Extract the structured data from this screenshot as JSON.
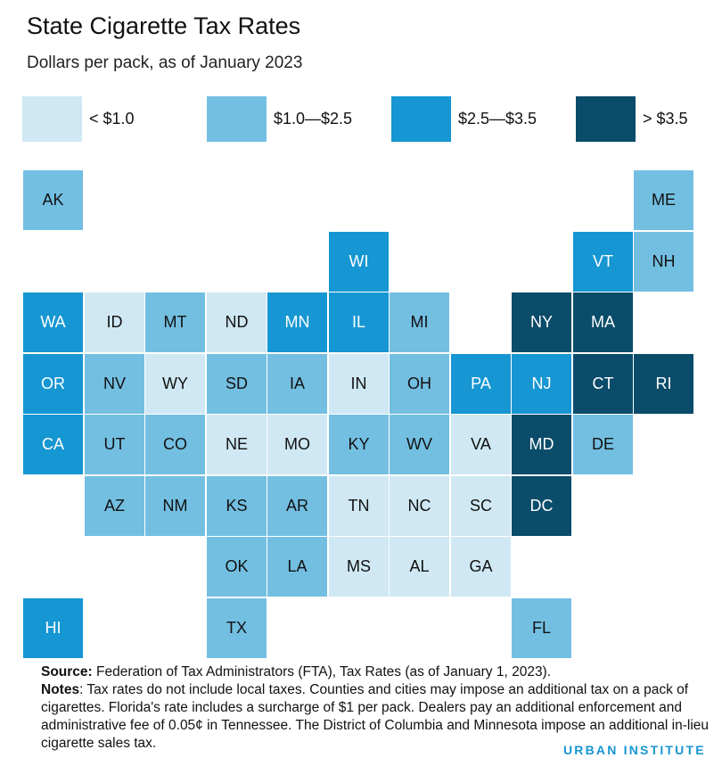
{
  "title": "State Cigarette Tax Rates",
  "subtitle": "Dollars per pack, as of January 2023",
  "colors": {
    "lt1": "#cfe8f3",
    "1to25": "#73bfe2",
    "25to35": "#1696d2",
    "gt35": "#0a4c6a"
  },
  "legend": [
    {
      "key": "lt1",
      "label": "< $1.0"
    },
    {
      "key": "1to25",
      "label": "$1.0—$2.5"
    },
    {
      "key": "25to35",
      "label": "$2.5—$3.5"
    },
    {
      "key": "gt35",
      "label": "> $3.5"
    }
  ],
  "states": [
    {
      "abbr": "AK",
      "row": 0,
      "col": 0,
      "bin": "1to25"
    },
    {
      "abbr": "ME",
      "row": 0,
      "col": 10,
      "bin": "1to25"
    },
    {
      "abbr": "WI",
      "row": 1,
      "col": 5,
      "bin": "25to35"
    },
    {
      "abbr": "VT",
      "row": 1,
      "col": 9,
      "bin": "25to35"
    },
    {
      "abbr": "NH",
      "row": 1,
      "col": 10,
      "bin": "1to25"
    },
    {
      "abbr": "WA",
      "row": 2,
      "col": 0,
      "bin": "25to35"
    },
    {
      "abbr": "ID",
      "row": 2,
      "col": 1,
      "bin": "lt1"
    },
    {
      "abbr": "MT",
      "row": 2,
      "col": 2,
      "bin": "1to25"
    },
    {
      "abbr": "ND",
      "row": 2,
      "col": 3,
      "bin": "lt1"
    },
    {
      "abbr": "MN",
      "row": 2,
      "col": 4,
      "bin": "25to35"
    },
    {
      "abbr": "IL",
      "row": 2,
      "col": 5,
      "bin": "25to35"
    },
    {
      "abbr": "MI",
      "row": 2,
      "col": 6,
      "bin": "1to25"
    },
    {
      "abbr": "NY",
      "row": 2,
      "col": 8,
      "bin": "gt35"
    },
    {
      "abbr": "MA",
      "row": 2,
      "col": 9,
      "bin": "gt35"
    },
    {
      "abbr": "OR",
      "row": 3,
      "col": 0,
      "bin": "25to35"
    },
    {
      "abbr": "NV",
      "row": 3,
      "col": 1,
      "bin": "1to25"
    },
    {
      "abbr": "WY",
      "row": 3,
      "col": 2,
      "bin": "lt1"
    },
    {
      "abbr": "SD",
      "row": 3,
      "col": 3,
      "bin": "1to25"
    },
    {
      "abbr": "IA",
      "row": 3,
      "col": 4,
      "bin": "1to25"
    },
    {
      "abbr": "IN",
      "row": 3,
      "col": 5,
      "bin": "lt1"
    },
    {
      "abbr": "OH",
      "row": 3,
      "col": 6,
      "bin": "1to25"
    },
    {
      "abbr": "PA",
      "row": 3,
      "col": 7,
      "bin": "25to35"
    },
    {
      "abbr": "NJ",
      "row": 3,
      "col": 8,
      "bin": "25to35"
    },
    {
      "abbr": "CT",
      "row": 3,
      "col": 9,
      "bin": "gt35"
    },
    {
      "abbr": "RI",
      "row": 3,
      "col": 10,
      "bin": "gt35"
    },
    {
      "abbr": "CA",
      "row": 4,
      "col": 0,
      "bin": "25to35"
    },
    {
      "abbr": "UT",
      "row": 4,
      "col": 1,
      "bin": "1to25"
    },
    {
      "abbr": "CO",
      "row": 4,
      "col": 2,
      "bin": "1to25"
    },
    {
      "abbr": "NE",
      "row": 4,
      "col": 3,
      "bin": "lt1"
    },
    {
      "abbr": "MO",
      "row": 4,
      "col": 4,
      "bin": "lt1"
    },
    {
      "abbr": "KY",
      "row": 4,
      "col": 5,
      "bin": "1to25"
    },
    {
      "abbr": "WV",
      "row": 4,
      "col": 6,
      "bin": "1to25"
    },
    {
      "abbr": "VA",
      "row": 4,
      "col": 7,
      "bin": "lt1"
    },
    {
      "abbr": "MD",
      "row": 4,
      "col": 8,
      "bin": "gt35"
    },
    {
      "abbr": "DE",
      "row": 4,
      "col": 9,
      "bin": "1to25"
    },
    {
      "abbr": "AZ",
      "row": 5,
      "col": 1,
      "bin": "1to25"
    },
    {
      "abbr": "NM",
      "row": 5,
      "col": 2,
      "bin": "1to25"
    },
    {
      "abbr": "KS",
      "row": 5,
      "col": 3,
      "bin": "1to25"
    },
    {
      "abbr": "AR",
      "row": 5,
      "col": 4,
      "bin": "1to25"
    },
    {
      "abbr": "TN",
      "row": 5,
      "col": 5,
      "bin": "lt1"
    },
    {
      "abbr": "NC",
      "row": 5,
      "col": 6,
      "bin": "lt1"
    },
    {
      "abbr": "SC",
      "row": 5,
      "col": 7,
      "bin": "lt1"
    },
    {
      "abbr": "DC",
      "row": 5,
      "col": 8,
      "bin": "gt35"
    },
    {
      "abbr": "OK",
      "row": 6,
      "col": 3,
      "bin": "1to25"
    },
    {
      "abbr": "LA",
      "row": 6,
      "col": 4,
      "bin": "1to25"
    },
    {
      "abbr": "MS",
      "row": 6,
      "col": 5,
      "bin": "lt1"
    },
    {
      "abbr": "AL",
      "row": 6,
      "col": 6,
      "bin": "lt1"
    },
    {
      "abbr": "GA",
      "row": 6,
      "col": 7,
      "bin": "lt1"
    },
    {
      "abbr": "HI",
      "row": 7,
      "col": 0,
      "bin": "25to35"
    },
    {
      "abbr": "TX",
      "row": 7,
      "col": 3,
      "bin": "1to25"
    },
    {
      "abbr": "FL",
      "row": 7,
      "col": 8,
      "bin": "1to25"
    }
  ],
  "footer": {
    "source_label": "Source:",
    "source_text": " Federation of Tax Administrators (FTA), Tax Rates (as of January 1, 2023).",
    "notes_label": "Notes",
    "notes_text": ": Tax rates do not include local taxes. Counties and cities may impose an additional tax on a pack of cigarettes. Florida's rate includes a surcharge of $1 per pack. Dealers pay an additional enforcement and administrative fee of 0.05¢ in Tennessee. The District of Columbia and Minnesota impose an additional in-lieu cigarette sales tax."
  },
  "logo": "URBAN INSTITUTE"
}
